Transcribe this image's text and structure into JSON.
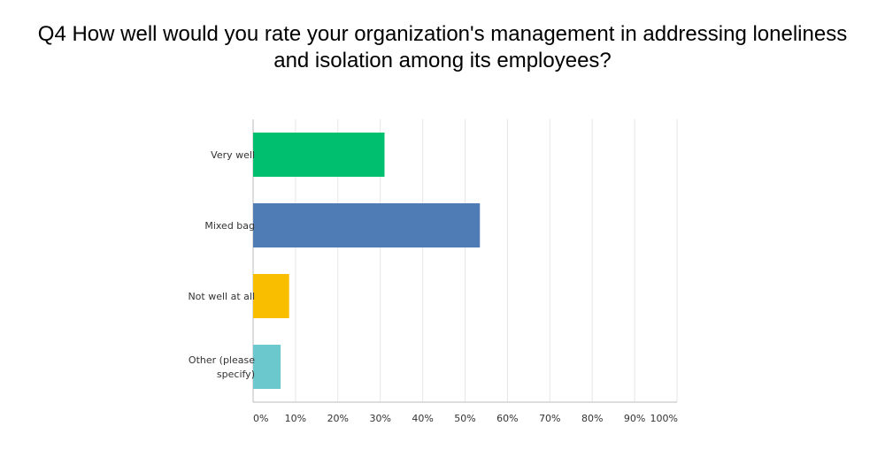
{
  "title": "Q4 How well would you rate your organization's management in addressing loneliness and isolation among its employees?",
  "chart_data": {
    "type": "bar",
    "orientation": "horizontal",
    "categories": [
      [
        "Very well"
      ],
      [
        "Mixed bag"
      ],
      [
        "Not well at all"
      ],
      [
        "Other (please",
        "specify)"
      ]
    ],
    "values": [
      31,
      53.5,
      8.5,
      6.5
    ],
    "colors": [
      "#00bf6f",
      "#507cb6",
      "#f9be00",
      "#6bc8cd"
    ],
    "x_ticks": [
      "0%",
      "10%",
      "20%",
      "30%",
      "40%",
      "50%",
      "60%",
      "70%",
      "80%",
      "90%",
      "100%"
    ],
    "xlim": [
      0,
      100
    ],
    "grid": true,
    "legend": "none"
  }
}
